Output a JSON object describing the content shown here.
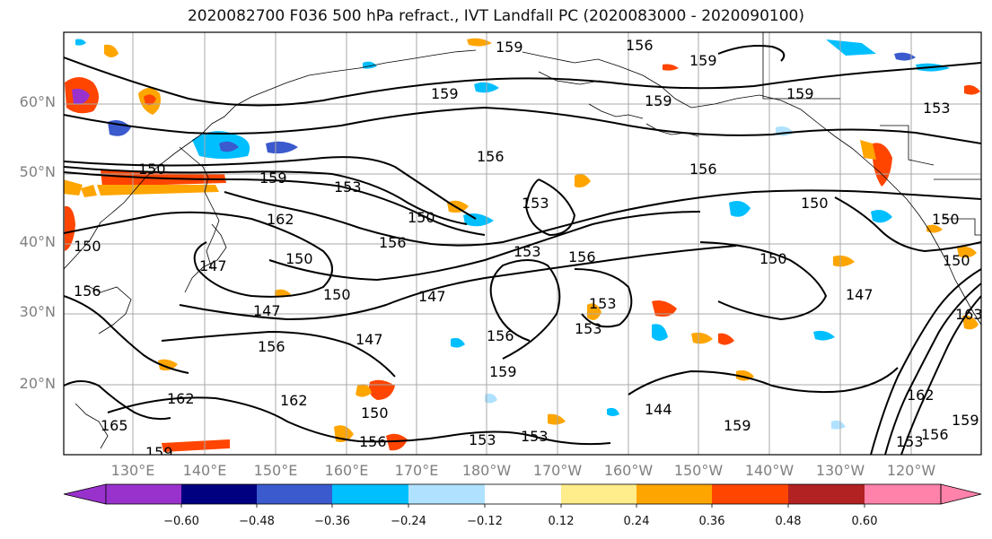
{
  "title": "2020082700 F036 500 hPa refract., IVT Landfall PC (2020083000 - 2020090100)",
  "lat_labels": [
    "60°N",
    "50°N",
    "40°N",
    "30°N",
    "20°N"
  ],
  "lon_labels": [
    "130°E",
    "140°E",
    "150°E",
    "160°E",
    "170°E",
    "180°W",
    "170°W",
    "160°W",
    "150°W",
    "140°W",
    "130°W",
    "120°W"
  ],
  "contour_labels": [
    "159",
    "156",
    "159",
    "159",
    "159",
    "156",
    "150",
    "159",
    "153",
    "162",
    "156",
    "153",
    "150",
    "153",
    "150",
    "156",
    "147",
    "150",
    "147",
    "156",
    "150",
    "147",
    "153",
    "156",
    "153",
    "159",
    "150",
    "147",
    "156",
    "144",
    "159",
    "162",
    "165",
    "162",
    "150",
    "156",
    "153",
    "153",
    "159",
    "153",
    "150",
    "150",
    "163",
    "147",
    "156",
    "162",
    "159",
    "153",
    "156",
    "159",
    "150"
  ],
  "colorbar": {
    "ticks": [
      "−0.60",
      "−0.48",
      "−0.36",
      "−0.24",
      "−0.12",
      "0.12",
      "0.24",
      "0.36",
      "0.48",
      "0.60"
    ],
    "colors": [
      "#9932cc",
      "#000080",
      "#3a5acd",
      "#00bfff",
      "#b0e2ff",
      "#ffffff",
      "#ffec8b",
      "#ffa500",
      "#ff4500",
      "#b22222",
      "#ff82ab"
    ]
  },
  "map_colors": {
    "land_outline": "#000000",
    "grid": "#a8a8a8",
    "contour": "#000000"
  }
}
